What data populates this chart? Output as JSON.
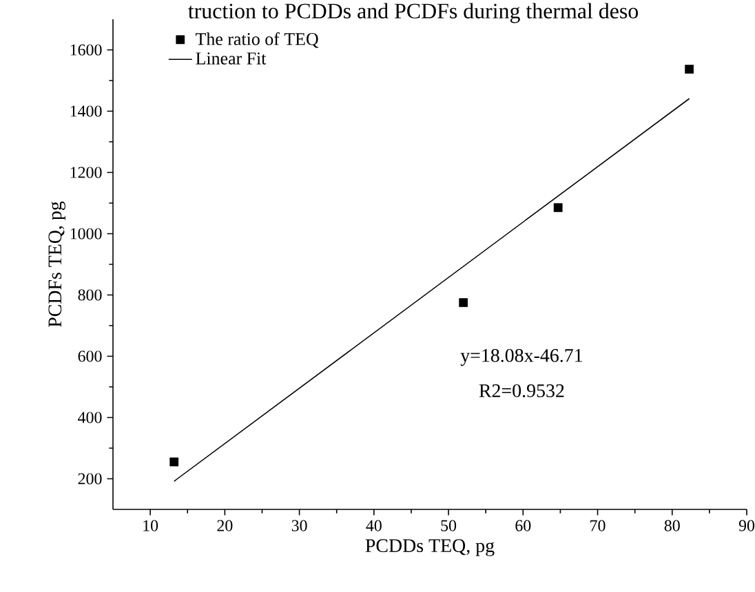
{
  "chart_data": {
    "type": "scatter",
    "title": "truction to PCDDs and PCDFs during thermal deso",
    "xlabel": "PCDDs TEQ, pg",
    "ylabel": "PCDFs TEQ, pg",
    "series": [
      {
        "name": "The ratio of TEQ",
        "color": "#000000",
        "marker": "square",
        "x": [
          13.2,
          52,
          64.7,
          82.3
        ],
        "values": [
          255,
          775,
          1085,
          1537
        ]
      },
      {
        "name": "Linear Fit",
        "type": "line",
        "color": "#000000",
        "line_style": "solid",
        "x": [
          13.2,
          82.3
        ],
        "values": [
          192,
          1441
        ]
      }
    ],
    "xlim": [
      5,
      90
    ],
    "xticks": [
      10,
      20,
      30,
      40,
      50,
      60,
      70,
      80,
      90
    ],
    "ylim": [
      100,
      1700
    ],
    "yticks": [
      200,
      400,
      600,
      800,
      1000,
      1200,
      1400,
      1600
    ],
    "annotations": [
      "y=18.08x-46.71",
      "R2=0.9532"
    ],
    "legend": "top left",
    "grid": false
  }
}
